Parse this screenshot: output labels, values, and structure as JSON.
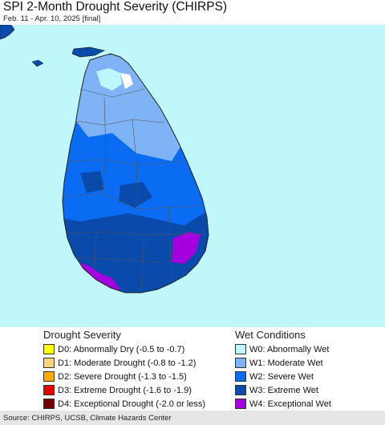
{
  "header": {
    "title": "SPI 2-Month Drought Severity (CHIRPS)",
    "subtitle": "Feb. 11 - Apr. 10, 2025 [final]"
  },
  "map": {
    "water_color": "#bff7fb",
    "region": "Sri Lanka"
  },
  "legend": {
    "drought": {
      "heading": "Drought Severity",
      "items": [
        {
          "code": "D0",
          "label": "D0: Abnormally Dry (-0.5 to -0.7)",
          "color": "#ffff00"
        },
        {
          "code": "D1",
          "label": "D1: Moderate Drought (-0.8 to -1.2)",
          "color": "#fcd37f"
        },
        {
          "code": "D2",
          "label": "D2: Severe Drought (-1.3 to -1.5)",
          "color": "#ffaa00"
        },
        {
          "code": "D3",
          "label": "D3: Extreme Drought (-1.6 to -1.9)",
          "color": "#e60000"
        },
        {
          "code": "D4",
          "label": "D4: Exceptional Drought (-2.0 or less)",
          "color": "#730000"
        }
      ]
    },
    "wet": {
      "heading": "Wet Conditions",
      "items": [
        {
          "code": "W0",
          "label": "W0: Abnormally Wet",
          "color": "#bef7fd"
        },
        {
          "code": "W1",
          "label": "W1: Moderate Wet",
          "color": "#7eb4f5"
        },
        {
          "code": "W2",
          "label": "W2: Severe Wet",
          "color": "#0a6cf2"
        },
        {
          "code": "W3",
          "label": "W3: Extreme Wet",
          "color": "#0a4aaa"
        },
        {
          "code": "W4",
          "label": "W4: Exceptional Wet",
          "color": "#a400e0"
        }
      ]
    }
  },
  "footer": {
    "source": "Source: CHIRPS, UCSB, Climate Hazards Center"
  }
}
